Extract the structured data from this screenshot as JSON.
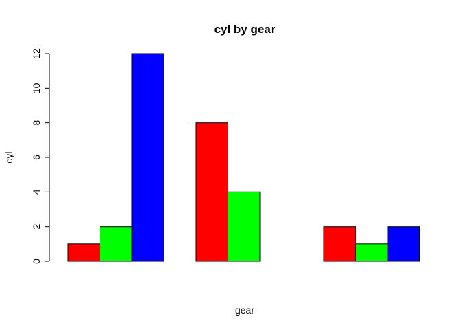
{
  "chart_data": {
    "type": "bar",
    "title": "cyl by gear",
    "xlabel": "gear",
    "ylabel": "cyl",
    "ylim": [
      0,
      12
    ],
    "yticks": [
      "0",
      "2",
      "4",
      "6",
      "8",
      "10",
      "12"
    ],
    "grid": false,
    "categories": [
      "",
      "",
      ""
    ],
    "series": [
      {
        "color": "#ff0000",
        "values": [
          1,
          8,
          2
        ]
      },
      {
        "color": "#00ff00",
        "values": [
          2,
          4,
          1
        ]
      },
      {
        "color": "#0000ff",
        "values": [
          12,
          0,
          2
        ]
      }
    ]
  }
}
